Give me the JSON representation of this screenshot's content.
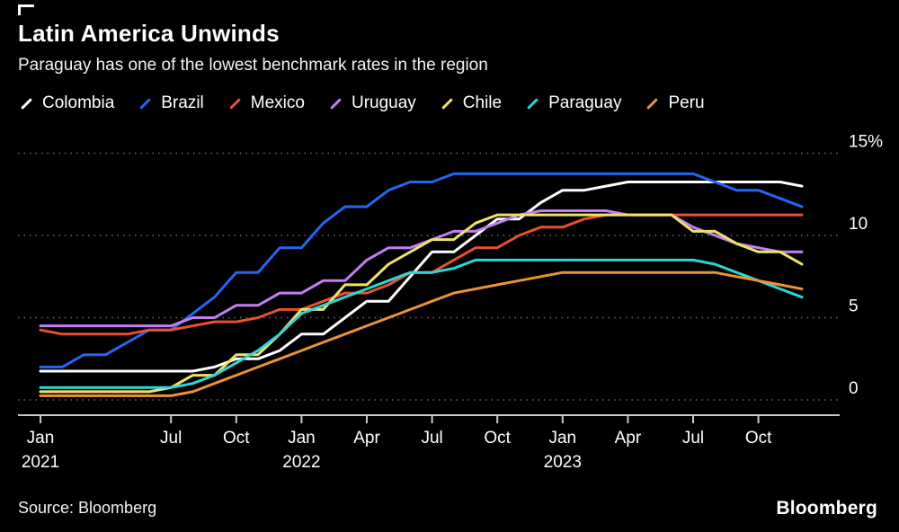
{
  "page": {
    "source": "Source: Bloomberg",
    "brand": "Bloomberg"
  },
  "chart_data": {
    "type": "line",
    "title": "Latin America Unwinds",
    "subtitle": "Paraguay has one of the lowest benchmark rates in the region",
    "unit": "%",
    "ylim": [
      0,
      15
    ],
    "grid": "dotted-horizontal",
    "legend_position": "top",
    "x_start": "2021-01",
    "x_step": "month",
    "n_points": 36,
    "yticks": [
      {
        "value": 0,
        "label": "0"
      },
      {
        "value": 5,
        "label": "5"
      },
      {
        "value": 10,
        "label": "10"
      },
      {
        "value": 15,
        "label": "15%"
      }
    ],
    "xticks": [
      {
        "month": 0,
        "label": "Jan",
        "year": "2021"
      },
      {
        "month": 6,
        "label": "Jul"
      },
      {
        "month": 9,
        "label": "Oct"
      },
      {
        "month": 12,
        "label": "Jan",
        "year": "2022"
      },
      {
        "month": 15,
        "label": "Apr"
      },
      {
        "month": 18,
        "label": "Jul"
      },
      {
        "month": 21,
        "label": "Oct"
      },
      {
        "month": 24,
        "label": "Jan",
        "year": "2023"
      },
      {
        "month": 27,
        "label": "Apr"
      },
      {
        "month": 30,
        "label": "Jul"
      },
      {
        "month": 33,
        "label": "Oct"
      }
    ],
    "series": [
      {
        "name": "Colombia",
        "color": "#ffffff",
        "values": [
          1.75,
          1.75,
          1.75,
          1.75,
          1.75,
          1.75,
          1.75,
          1.75,
          2,
          2.5,
          2.5,
          3,
          4,
          4,
          5,
          6,
          6,
          7.5,
          9,
          9,
          10,
          11,
          11,
          12,
          12.75,
          12.75,
          13,
          13.25,
          13.25,
          13.25,
          13.25,
          13.25,
          13.25,
          13.25,
          13.25,
          13
        ]
      },
      {
        "name": "Brazil",
        "color": "#2466f2",
        "values": [
          2,
          2,
          2.75,
          2.75,
          3.5,
          4.25,
          4.25,
          5.25,
          6.25,
          7.75,
          7.75,
          9.25,
          9.25,
          10.75,
          11.75,
          11.75,
          12.75,
          13.25,
          13.25,
          13.75,
          13.75,
          13.75,
          13.75,
          13.75,
          13.75,
          13.75,
          13.75,
          13.75,
          13.75,
          13.75,
          13.75,
          13.25,
          12.75,
          12.75,
          12.25,
          11.75
        ]
      },
      {
        "name": "Mexico",
        "color": "#e8522e",
        "values": [
          4.25,
          4,
          4,
          4,
          4,
          4.25,
          4.25,
          4.5,
          4.75,
          4.75,
          5,
          5.5,
          5.5,
          6,
          6.5,
          6.5,
          7,
          7.75,
          7.75,
          8.5,
          9.25,
          9.25,
          10,
          10.5,
          10.5,
          11,
          11.25,
          11.25,
          11.25,
          11.25,
          11.25,
          11.25,
          11.25,
          11.25,
          11.25,
          11.25
        ]
      },
      {
        "name": "Uruguay",
        "color": "#c27ef2",
        "values": [
          4.5,
          4.5,
          4.5,
          4.5,
          4.5,
          4.5,
          4.5,
          5,
          5,
          5.75,
          5.75,
          6.5,
          6.5,
          7.25,
          7.25,
          8.5,
          9.25,
          9.25,
          9.75,
          10.25,
          10.25,
          10.75,
          11.25,
          11.5,
          11.5,
          11.5,
          11.5,
          11.25,
          11.25,
          11.25,
          10.5,
          10,
          9.5,
          9.25,
          9,
          9
        ]
      },
      {
        "name": "Chile",
        "color": "#f0e168",
        "values": [
          0.5,
          0.5,
          0.5,
          0.5,
          0.5,
          0.5,
          0.75,
          1.5,
          1.5,
          2.75,
          2.75,
          4,
          5.5,
          5.5,
          7,
          7,
          8.25,
          9,
          9.75,
          9.75,
          10.75,
          11.25,
          11.25,
          11.25,
          11.25,
          11.25,
          11.25,
          11.25,
          11.25,
          11.25,
          10.25,
          10.25,
          9.5,
          9,
          9,
          8.25
        ]
      },
      {
        "name": "Paraguay",
        "color": "#30d5d5",
        "values": [
          0.75,
          0.75,
          0.75,
          0.75,
          0.75,
          0.75,
          0.75,
          1,
          1.5,
          2.25,
          3,
          4,
          5.25,
          5.75,
          6.25,
          6.75,
          7.25,
          7.75,
          7.75,
          8,
          8.5,
          8.5,
          8.5,
          8.5,
          8.5,
          8.5,
          8.5,
          8.5,
          8.5,
          8.5,
          8.5,
          8.25,
          7.75,
          7.25,
          6.75,
          6.25
        ]
      },
      {
        "name": "Peru",
        "color": "#ec9138",
        "values": [
          0.25,
          0.25,
          0.25,
          0.25,
          0.25,
          0.25,
          0.25,
          0.5,
          1,
          1.5,
          2,
          2.5,
          3,
          3.5,
          4,
          4.5,
          5,
          5.5,
          6,
          6.5,
          6.75,
          7,
          7.25,
          7.5,
          7.75,
          7.75,
          7.75,
          7.75,
          7.75,
          7.75,
          7.75,
          7.75,
          7.5,
          7.25,
          7,
          6.75
        ]
      }
    ]
  }
}
